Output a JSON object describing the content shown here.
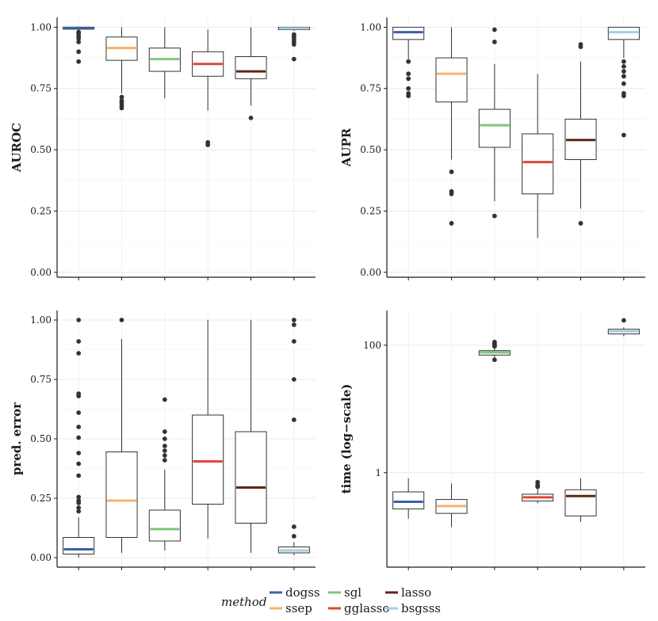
{
  "legend": {
    "title": "method",
    "entries": [
      {
        "name": "dogss",
        "color": "#3a62a8"
      },
      {
        "name": "ssep",
        "color": "#f7b36b"
      },
      {
        "name": "sgl",
        "color": "#7fc77b"
      },
      {
        "name": "gglasso",
        "color": "#e0463a"
      },
      {
        "name": "lasso",
        "color": "#5a2a14"
      },
      {
        "name": "bsgsss",
        "color": "#a6cee3"
      }
    ]
  },
  "chart_data": [
    {
      "type": "boxplot",
      "ylabel": "AUROC",
      "scale": "linear",
      "ylim": [
        -0.02,
        1.04
      ],
      "yticks": [
        0.0,
        0.25,
        0.5,
        0.75,
        1.0
      ],
      "ytick_labels": [
        "0.00",
        "0.25",
        "0.50",
        "0.75",
        "1.00"
      ],
      "boxes": [
        {
          "method": "dogss",
          "whisker_low": 0.97,
          "q1": 0.992,
          "median": 0.997,
          "q3": 1.0,
          "whisker_high": 1.0,
          "outliers": [
            0.98,
            0.975,
            0.965,
            0.955,
            0.94,
            0.9,
            0.86
          ]
        },
        {
          "method": "ssep",
          "whisker_low": 0.73,
          "q1": 0.865,
          "median": 0.915,
          "q3": 0.96,
          "whisker_high": 1.0,
          "outliers": [
            0.715,
            0.7,
            0.69,
            0.68,
            0.67
          ]
        },
        {
          "method": "sgl",
          "whisker_low": 0.71,
          "q1": 0.82,
          "median": 0.87,
          "q3": 0.915,
          "whisker_high": 1.0,
          "outliers": []
        },
        {
          "method": "gglasso",
          "whisker_low": 0.66,
          "q1": 0.8,
          "median": 0.85,
          "q3": 0.9,
          "whisker_high": 0.99,
          "outliers": [
            0.53,
            0.52
          ]
        },
        {
          "method": "lasso",
          "whisker_low": 0.68,
          "q1": 0.79,
          "median": 0.82,
          "q3": 0.88,
          "whisker_high": 1.0,
          "outliers": [
            0.63
          ]
        },
        {
          "method": "bsgsss",
          "whisker_low": 0.985,
          "q1": 0.99,
          "median": 0.995,
          "q3": 1.0,
          "whisker_high": 1.0,
          "outliers": [
            0.97,
            0.96,
            0.95,
            0.94,
            0.93,
            0.87
          ]
        }
      ]
    },
    {
      "type": "boxplot",
      "ylabel": "AUPR",
      "scale": "linear",
      "ylim": [
        -0.02,
        1.04
      ],
      "yticks": [
        0.0,
        0.25,
        0.5,
        0.75,
        1.0
      ],
      "ytick_labels": [
        "0.00",
        "0.25",
        "0.50",
        "0.75",
        "1.00"
      ],
      "boxes": [
        {
          "method": "dogss",
          "whisker_low": 0.87,
          "q1": 0.95,
          "median": 0.98,
          "q3": 1.0,
          "whisker_high": 1.0,
          "outliers": [
            0.86,
            0.81,
            0.79,
            0.75,
            0.73,
            0.72
          ]
        },
        {
          "method": "ssep",
          "whisker_low": 0.46,
          "q1": 0.695,
          "median": 0.81,
          "q3": 0.875,
          "whisker_high": 1.0,
          "outliers": [
            0.41,
            0.33,
            0.32,
            0.2
          ]
        },
        {
          "method": "sgl",
          "whisker_low": 0.29,
          "q1": 0.51,
          "median": 0.6,
          "q3": 0.665,
          "whisker_high": 0.85,
          "outliers": [
            0.99,
            0.94,
            0.23
          ]
        },
        {
          "method": "gglasso",
          "whisker_low": 0.14,
          "q1": 0.32,
          "median": 0.45,
          "q3": 0.565,
          "whisker_high": 0.81,
          "outliers": []
        },
        {
          "method": "lasso",
          "whisker_low": 0.26,
          "q1": 0.46,
          "median": 0.54,
          "q3": 0.625,
          "whisker_high": 0.86,
          "outliers": [
            0.93,
            0.92,
            0.2
          ]
        },
        {
          "method": "bsgsss",
          "whisker_low": 0.875,
          "q1": 0.95,
          "median": 0.98,
          "q3": 1.0,
          "whisker_high": 1.0,
          "outliers": [
            0.86,
            0.84,
            0.82,
            0.8,
            0.77,
            0.73,
            0.72,
            0.56
          ]
        }
      ]
    },
    {
      "type": "boxplot",
      "ylabel": "pred. error",
      "scale": "linear",
      "ylim": [
        -0.04,
        1.04
      ],
      "yticks": [
        0.0,
        0.25,
        0.5,
        0.75,
        1.0
      ],
      "ytick_labels": [
        "0.00",
        "0.25",
        "0.50",
        "0.75",
        "1.00"
      ],
      "boxes": [
        {
          "method": "dogss",
          "whisker_low": 0.0,
          "q1": 0.015,
          "median": 0.035,
          "q3": 0.085,
          "whisker_high": 0.17,
          "outliers": [
            1.0,
            0.91,
            0.86,
            0.69,
            0.68,
            0.61,
            0.55,
            0.505,
            0.44,
            0.395,
            0.345,
            0.255,
            0.24,
            0.23,
            0.21,
            0.195
          ]
        },
        {
          "method": "ssep",
          "whisker_low": 0.02,
          "q1": 0.085,
          "median": 0.24,
          "q3": 0.445,
          "whisker_high": 0.92,
          "outliers": [
            1.0
          ]
        },
        {
          "method": "sgl",
          "whisker_low": 0.03,
          "q1": 0.07,
          "median": 0.12,
          "q3": 0.2,
          "whisker_high": 0.37,
          "outliers": [
            0.665,
            0.53,
            0.5,
            0.47,
            0.45,
            0.43,
            0.41
          ]
        },
        {
          "method": "gglasso",
          "whisker_low": 0.08,
          "q1": 0.225,
          "median": 0.405,
          "q3": 0.6,
          "whisker_high": 1.0,
          "outliers": []
        },
        {
          "method": "lasso",
          "whisker_low": 0.02,
          "q1": 0.145,
          "median": 0.295,
          "q3": 0.53,
          "whisker_high": 1.0,
          "outliers": []
        },
        {
          "method": "bsgsss",
          "whisker_low": 0.01,
          "q1": 0.02,
          "median": 0.03,
          "q3": 0.045,
          "whisker_high": 0.065,
          "outliers": [
            1.0,
            0.98,
            0.91,
            0.75,
            0.58,
            0.13,
            0.09
          ]
        }
      ]
    },
    {
      "type": "boxplot",
      "ylabel": "time (log−scale)",
      "scale": "log",
      "ylim": [
        0.033,
        350
      ],
      "yticks": [
        1,
        100
      ],
      "ytick_labels": [
        "1",
        "100"
      ],
      "boxes": [
        {
          "method": "dogss",
          "whisker_low": 0.19,
          "q1": 0.27,
          "median": 0.35,
          "q3": 0.5,
          "whisker_high": 0.82,
          "outliers": []
        },
        {
          "method": "ssep",
          "whisker_low": 0.14,
          "q1": 0.23,
          "median": 0.3,
          "q3": 0.38,
          "whisker_high": 0.68,
          "outliers": []
        },
        {
          "method": "sgl",
          "whisker_low": 62,
          "q1": 70,
          "median": 77,
          "q3": 82,
          "whisker_high": 92,
          "outliers": [
            112,
            107,
            102,
            98,
            96,
            59
          ]
        },
        {
          "method": "gglasso",
          "whisker_low": 0.33,
          "q1": 0.36,
          "median": 0.41,
          "q3": 0.46,
          "whisker_high": 0.55,
          "outliers": [
            0.71,
            0.64,
            0.6
          ]
        },
        {
          "method": "lasso",
          "whisker_low": 0.17,
          "q1": 0.21,
          "median": 0.43,
          "q3": 0.54,
          "whisker_high": 0.82,
          "outliers": []
        },
        {
          "method": "bsgsss",
          "whisker_low": 138,
          "q1": 150,
          "median": 165,
          "q3": 178,
          "whisker_high": 190,
          "outliers": [
            245
          ]
        }
      ]
    }
  ]
}
